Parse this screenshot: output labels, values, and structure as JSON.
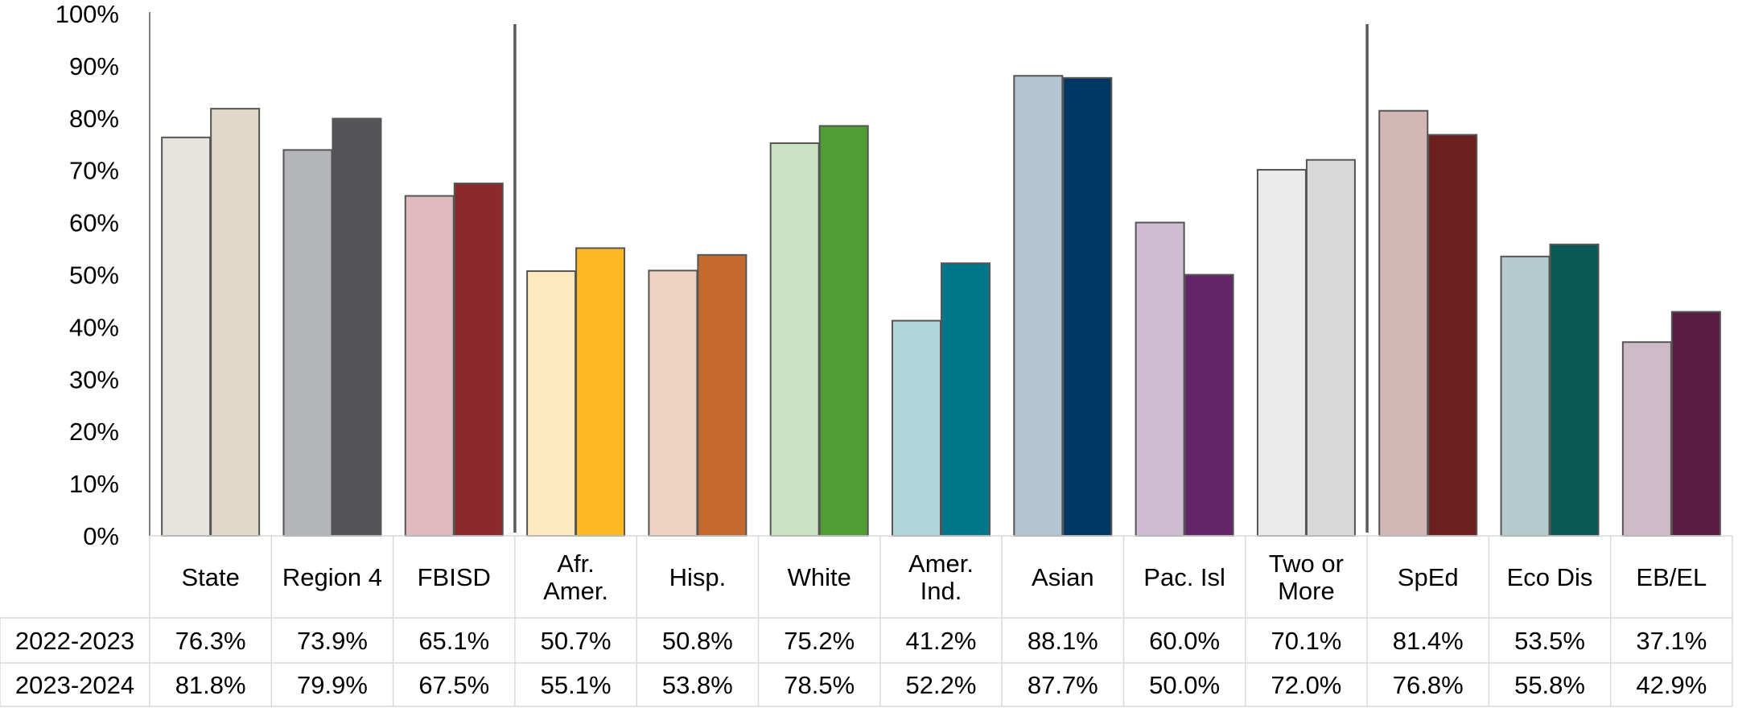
{
  "chart_data": {
    "type": "bar",
    "title": "",
    "xlabel": "",
    "ylabel": "",
    "ylim": [
      0,
      100
    ],
    "yticks": [
      0,
      10,
      20,
      30,
      40,
      50,
      60,
      70,
      80,
      90,
      100
    ],
    "ytick_labels": [
      "0%",
      "10%",
      "20%",
      "30%",
      "40%",
      "50%",
      "60%",
      "70%",
      "80%",
      "90%",
      "100%"
    ],
    "grid": false,
    "legend": "data table below chart",
    "categories": [
      [
        "State"
      ],
      [
        "Region 4"
      ],
      [
        "FBISD"
      ],
      [
        "Afr.",
        "Amer."
      ],
      [
        "Hisp."
      ],
      [
        "White"
      ],
      [
        "Amer.",
        "Ind."
      ],
      [
        "Asian"
      ],
      [
        "Pac. Isl"
      ],
      [
        "Two or",
        "More"
      ],
      [
        "SpEd"
      ],
      [
        "Eco Dis"
      ],
      [
        "EB/EL"
      ]
    ],
    "group_separators_after": [
      2,
      9
    ],
    "series": [
      {
        "name": "2022-2023",
        "values": [
          76.3,
          73.9,
          65.1,
          50.7,
          50.8,
          75.2,
          41.2,
          88.1,
          60.0,
          70.1,
          81.4,
          53.5,
          37.1
        ],
        "labels": [
          "76.3%",
          "73.9%",
          "65.1%",
          "50.7%",
          "50.8%",
          "75.2%",
          "41.2%",
          "88.1%",
          "60.0%",
          "70.1%",
          "81.4%",
          "53.5%",
          "37.1%"
        ],
        "colors": [
          "#e7e4df",
          "#b4b5b8",
          "#dfbbbf",
          "#fee8bd",
          "#eed3c3",
          "#cbe3c4",
          "#b2d6dc",
          "#b3c4d3",
          "#cfbed3",
          "#ebebeb",
          "#d2b7b7",
          "#b5cbcd",
          "#cfbbc8"
        ]
      },
      {
        "name": "2023-2024",
        "values": [
          81.8,
          79.9,
          67.5,
          55.1,
          53.8,
          78.5,
          52.2,
          87.7,
          50.0,
          72.0,
          76.8,
          55.8,
          42.9
        ],
        "labels": [
          "81.8%",
          "79.9%",
          "67.5%",
          "55.1%",
          "53.8%",
          "78.5%",
          "52.2%",
          "87.7%",
          "50.0%",
          "72.0%",
          "76.8%",
          "55.8%",
          "42.9%"
        ],
        "colors": [
          "#e2d8c9",
          "#545459",
          "#8b2a2d",
          "#fdb823",
          "#c56a2f",
          "#4f9d33",
          "#00768a",
          "#003764",
          "#632568",
          "#d9d9d9",
          "#6b1f1f",
          "#0b5957",
          "#5a1c45"
        ]
      }
    ]
  }
}
